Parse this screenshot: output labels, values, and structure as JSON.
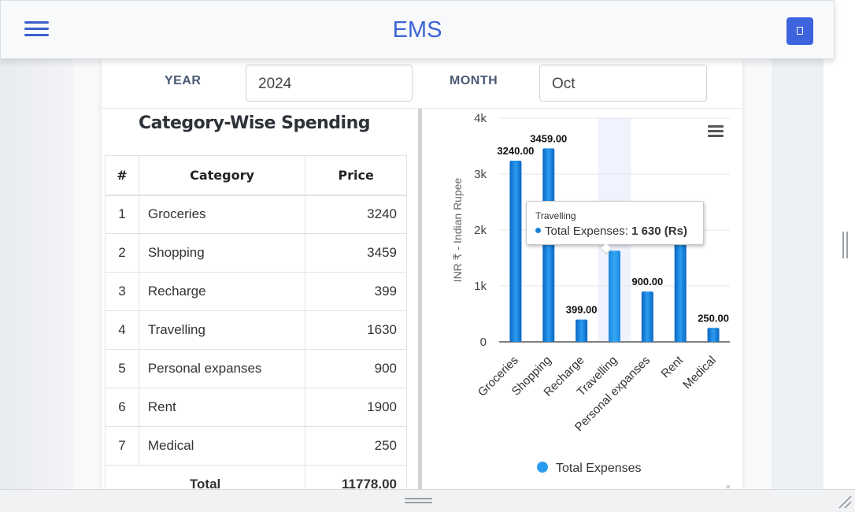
{
  "navbar": {
    "brand": "EMS",
    "menu_icon": "hamburger-icon",
    "action_icon": "device-icon",
    "accent": "#3d63dd"
  },
  "filters": {
    "year_label": "YEAR",
    "year_value": "2024",
    "month_label": "MONTH",
    "month_value": "Oct"
  },
  "table": {
    "title": "Category-Wise Spending",
    "headers": [
      "#",
      "Category",
      "Price"
    ],
    "rows": [
      {
        "num": "1",
        "category": "Groceries",
        "price": "3240"
      },
      {
        "num": "2",
        "category": "Shopping",
        "price": "3459"
      },
      {
        "num": "3",
        "category": "Recharge",
        "price": "399"
      },
      {
        "num": "4",
        "category": "Travelling",
        "price": "1630"
      },
      {
        "num": "5",
        "category": "Personal expanses",
        "price": "900"
      },
      {
        "num": "6",
        "category": "Rent",
        "price": "1900"
      },
      {
        "num": "7",
        "category": "Medical",
        "price": "250"
      }
    ],
    "total_label": "Total",
    "total_value": "11778.00"
  },
  "chart_data": {
    "type": "bar",
    "categories": [
      "Groceries",
      "Shopping",
      "Recharge",
      "Travelling",
      "Personal expanses",
      "Rent",
      "Medical"
    ],
    "series": [
      {
        "name": "Total Expenses",
        "values": [
          3240,
          3459,
          399,
          1630,
          900,
          1900,
          250
        ]
      }
    ],
    "data_labels": [
      "3240.00",
      "3459.00",
      "399.00",
      "",
      "900.00",
      "",
      "250.00"
    ],
    "ylabel": "INR ₹ - Indian Rupee",
    "yticks": [
      "0",
      "1k",
      "2k",
      "3k",
      "4k"
    ],
    "ytick_values": [
      0,
      1000,
      2000,
      3000,
      4000
    ],
    "ylim": [
      0,
      4000
    ],
    "legend_position": "bottom",
    "hovered_category": "Travelling",
    "bar_color_top": "#2a9cf0",
    "bar_color_bottom": "#0a66c2",
    "hover_color": "#35a6f5",
    "credit": "#"
  },
  "tooltip": {
    "title": "Travelling",
    "series_label": "Total Expenses:",
    "value": "1 630 (Rs)"
  }
}
